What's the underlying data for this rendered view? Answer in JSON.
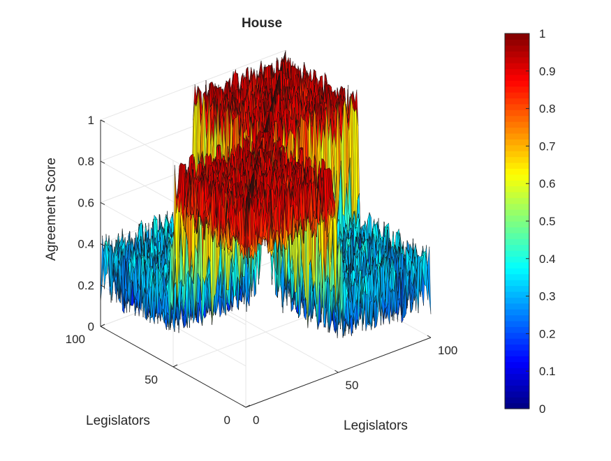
{
  "chart_data": {
    "type": "surface",
    "title": "House",
    "xlabel": "Legislators",
    "ylabel": "Legislators",
    "zlabel": "Agreement Score",
    "x_ticks": [
      "0",
      "50",
      "100"
    ],
    "y_ticks": [
      "0",
      "50",
      "100"
    ],
    "z_ticks": [
      "0",
      "0.2",
      "0.4",
      "0.6",
      "0.8",
      "1"
    ],
    "xlim": [
      0,
      100
    ],
    "ylim": [
      0,
      100
    ],
    "zlim": [
      0,
      1
    ],
    "grid": true,
    "colormap": "jet",
    "colorbar": {
      "ticks": [
        "0",
        "0.1",
        "0.2",
        "0.3",
        "0.4",
        "0.5",
        "0.6",
        "0.7",
        "0.8",
        "0.9",
        "1"
      ],
      "range": [
        0,
        1
      ]
    },
    "matrix": {
      "n": 100,
      "block_split": 50,
      "within_block_mean": 0.85,
      "between_block_mean": 0.28,
      "diagonal": 1.0
    }
  }
}
